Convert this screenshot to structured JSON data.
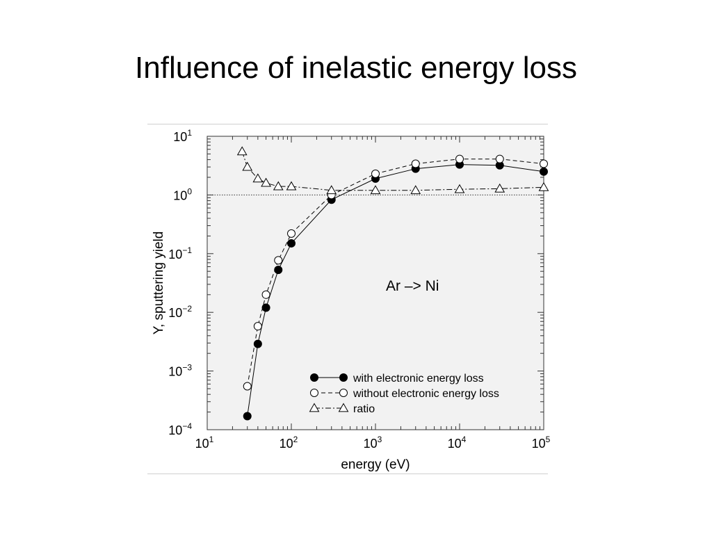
{
  "slide": {
    "title": "Influence of inelastic energy loss"
  },
  "chart_data": {
    "type": "line",
    "xscale": "log",
    "yscale": "log",
    "xlim": [
      10,
      100000
    ],
    "ylim": [
      0.0001,
      10
    ],
    "xlabel": "energy (eV)",
    "ylabel": "Y, sputtering yield",
    "annotation": "Ar –> Ni",
    "reference_line_y": 1,
    "x_ticks": [
      {
        "base": "10",
        "exp": "1",
        "value": 10
      },
      {
        "base": "10",
        "exp": "2",
        "value": 100
      },
      {
        "base": "10",
        "exp": "3",
        "value": 1000
      },
      {
        "base": "10",
        "exp": "4",
        "value": 10000
      },
      {
        "base": "10",
        "exp": "5",
        "value": 100000
      }
    ],
    "y_ticks": [
      {
        "base": "10",
        "exp": "−4",
        "value": 0.0001
      },
      {
        "base": "10",
        "exp": "−3",
        "value": 0.001
      },
      {
        "base": "10",
        "exp": "−2",
        "value": 0.01
      },
      {
        "base": "10",
        "exp": "−1",
        "value": 0.1
      },
      {
        "base": "10",
        "exp": "0",
        "value": 1
      },
      {
        "base": "10",
        "exp": "1",
        "value": 10
      }
    ],
    "legend_position": "bottom-right",
    "series": [
      {
        "name": "with electronic energy loss",
        "marker": "filled-circle",
        "line": "solid",
        "points": [
          [
            30,
            0.00017
          ],
          [
            40,
            0.0029
          ],
          [
            50,
            0.012
          ],
          [
            70,
            0.053
          ],
          [
            100,
            0.15
          ],
          [
            300,
            0.83
          ],
          [
            1000,
            1.9
          ],
          [
            3000,
            2.8
          ],
          [
            10000,
            3.3
          ],
          [
            30000,
            3.2
          ],
          [
            100000,
            2.5
          ]
        ]
      },
      {
        "name": "without electronic energy loss",
        "marker": "open-circle",
        "line": "dashed",
        "points": [
          [
            30,
            0.00055
          ],
          [
            40,
            0.0058
          ],
          [
            50,
            0.02
          ],
          [
            70,
            0.077
          ],
          [
            100,
            0.22
          ],
          [
            300,
            1.0
          ],
          [
            1000,
            2.3
          ],
          [
            3000,
            3.4
          ],
          [
            10000,
            4.1
          ],
          [
            30000,
            4.1
          ],
          [
            100000,
            3.4
          ]
        ]
      },
      {
        "name": "ratio",
        "marker": "open-triangle",
        "line": "dashdot",
        "points": [
          [
            26,
            5.5
          ],
          [
            30,
            3.0
          ],
          [
            40,
            1.9
          ],
          [
            50,
            1.6
          ],
          [
            70,
            1.4
          ],
          [
            100,
            1.4
          ],
          [
            300,
            1.2
          ],
          [
            1000,
            1.2
          ],
          [
            3000,
            1.2
          ],
          [
            10000,
            1.25
          ],
          [
            30000,
            1.28
          ],
          [
            100000,
            1.35
          ]
        ]
      }
    ]
  }
}
